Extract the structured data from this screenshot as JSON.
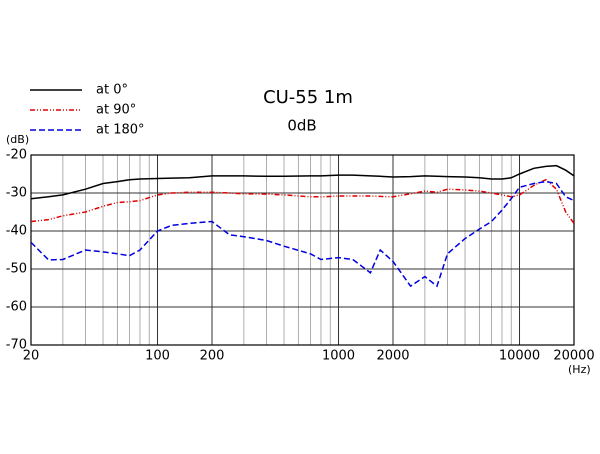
{
  "chart_data": {
    "type": "line",
    "title": "CU-55 1m",
    "subtitle": "0dB",
    "y_label": "(dB)",
    "x_label": "(Hz)",
    "xscale": "log",
    "grid": true,
    "legend": "upper left",
    "xlim": [
      20,
      20000
    ],
    "ylim": [
      -70,
      -20
    ],
    "xticks": [
      20,
      100,
      200,
      1000,
      2000,
      10000,
      20000
    ],
    "xgrid": [
      20,
      30,
      40,
      50,
      60,
      70,
      80,
      90,
      100,
      200,
      300,
      400,
      500,
      600,
      700,
      800,
      900,
      1000,
      2000,
      3000,
      4000,
      5000,
      6000,
      7000,
      8000,
      9000,
      10000,
      20000
    ],
    "yticks": [
      -70,
      -60,
      -50,
      -40,
      -30,
      -20
    ],
    "x": [
      20,
      25,
      30,
      40,
      50,
      60,
      70,
      80,
      100,
      120,
      150,
      200,
      250,
      300,
      400,
      500,
      700,
      800,
      1000,
      1200,
      1500,
      1700,
      2000,
      2500,
      3000,
      3500,
      4000,
      5000,
      6000,
      7000,
      8000,
      9000,
      10000,
      12000,
      14000,
      16000,
      18000,
      20000
    ],
    "series": [
      {
        "name": "at 0°",
        "color": "#000000",
        "dash": "solid",
        "values": [
          -31.5,
          -31,
          -30.5,
          -29,
          -27.5,
          -27,
          -26.5,
          -26.3,
          -26.2,
          -26.1,
          -26,
          -25.5,
          -25.5,
          -25.5,
          -25.6,
          -25.6,
          -25.5,
          -25.5,
          -25.3,
          -25.3,
          -25.5,
          -25.6,
          -25.8,
          -25.7,
          -25.5,
          -25.6,
          -25.7,
          -25.8,
          -26,
          -26.3,
          -26.3,
          -26,
          -25,
          -23.5,
          -23,
          -22.8,
          -24,
          -25.5
        ]
      },
      {
        "name": "at 90°",
        "color": "#e00000",
        "dash": "dashdot",
        "values": [
          -37.5,
          -37,
          -36,
          -35,
          -33.5,
          -32.5,
          -32.3,
          -32,
          -30.5,
          -30,
          -29.8,
          -29.8,
          -30,
          -30.2,
          -30.3,
          -30.5,
          -31,
          -31,
          -30.8,
          -30.8,
          -30.8,
          -30.9,
          -31,
          -30.2,
          -29.5,
          -29.8,
          -29,
          -29.2,
          -29.5,
          -30,
          -30.5,
          -31,
          -30.5,
          -28,
          -26.5,
          -29,
          -35,
          -38
        ]
      },
      {
        "name": "at 180°",
        "color": "#0000e0",
        "dash": "dashed",
        "values": [
          -43,
          -47.6,
          -47.5,
          -45,
          -45.5,
          -46,
          -46.5,
          -45,
          -40,
          -38.5,
          -38,
          -37.5,
          -41,
          -41.5,
          -42.5,
          -44,
          -46,
          -47.5,
          -47,
          -47.5,
          -51,
          -45,
          -48,
          -54.5,
          -52,
          -54.5,
          -46,
          -42,
          -39.5,
          -37.5,
          -34.5,
          -31.5,
          -28.5,
          -27.5,
          -27,
          -27.5,
          -31,
          -32
        ]
      }
    ]
  }
}
